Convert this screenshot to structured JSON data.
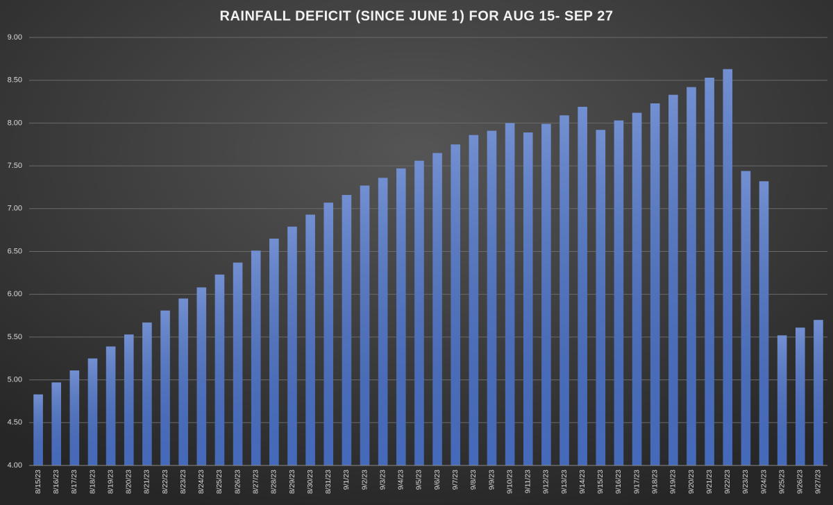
{
  "chart_data": {
    "type": "bar",
    "title": "RAINFALL DEFICIT (SINCE JUNE 1) FOR AUG 15- SEP 27",
    "categories": [
      "8/15/23",
      "8/16/23",
      "8/17/23",
      "8/18/23",
      "8/19/23",
      "8/20/23",
      "8/21/23",
      "8/22/23",
      "8/23/23",
      "8/24/23",
      "8/25/23",
      "8/26/23",
      "8/27/23",
      "8/28/23",
      "8/29/23",
      "8/30/23",
      "8/31/23",
      "9/1/23",
      "9/2/23",
      "9/3/23",
      "9/4/23",
      "9/5/23",
      "9/6/23",
      "9/7/23",
      "9/8/23",
      "9/9/23",
      "9/10/23",
      "9/11/23",
      "9/12/23",
      "9/13/23",
      "9/14/23",
      "9/15/23",
      "9/16/23",
      "9/17/23",
      "9/18/23",
      "9/19/23",
      "9/20/23",
      "9/21/23",
      "9/22/23",
      "9/23/23",
      "9/24/23",
      "9/25/23",
      "9/26/23",
      "9/27/23"
    ],
    "values": [
      4.83,
      4.97,
      5.11,
      5.25,
      5.39,
      5.53,
      5.67,
      5.81,
      5.95,
      6.08,
      6.23,
      6.37,
      6.51,
      6.65,
      6.79,
      6.93,
      7.07,
      7.16,
      7.27,
      7.36,
      7.47,
      7.56,
      7.65,
      7.75,
      7.86,
      7.91,
      8.0,
      7.89,
      7.99,
      8.09,
      8.19,
      7.92,
      8.03,
      8.12,
      8.23,
      8.33,
      8.42,
      8.53,
      8.63,
      7.44,
      7.32,
      5.52,
      5.61,
      5.7
    ],
    "color": "#4a70c4",
    "ylim": [
      4,
      9
    ],
    "yticks": [
      {
        "value": 4,
        "label": "4.00"
      },
      {
        "value": 4.5,
        "label": "4.50"
      },
      {
        "value": 5,
        "label": "5.00"
      },
      {
        "value": 5.5,
        "label": "5.50"
      },
      {
        "value": 6,
        "label": "6.00"
      },
      {
        "value": 6.5,
        "label": "6.50"
      },
      {
        "value": 7,
        "label": "7.00"
      },
      {
        "value": 7.5,
        "label": "7.50"
      },
      {
        "value": 8,
        "label": "8.00"
      },
      {
        "value": 8.5,
        "label": "8.50"
      },
      {
        "value": 9,
        "label": "9.00"
      }
    ],
    "grid": true
  }
}
